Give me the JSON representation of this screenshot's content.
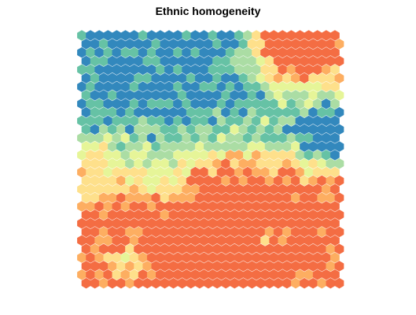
{
  "chart_data": {
    "type": "heatmap",
    "subtype": "hexagonal self-organizing map",
    "title": "Ethnic homogeneity",
    "grid": {
      "rows": 30,
      "cols": 30,
      "topology": "hexagonal"
    },
    "palette": [
      "#3288BD",
      "#66C2A5",
      "#ABDDA4",
      "#E6F598",
      "#FEE08B",
      "#FDAE61",
      "#F46D43"
    ],
    "value_range": [
      0,
      1
    ],
    "values_note": "Per-cell scaled values (0 = blue, 1 = red), estimated from cell colours in row-major order from the top row; generated by the drawing script from a smooth approximation of the observed spatial pattern."
  }
}
